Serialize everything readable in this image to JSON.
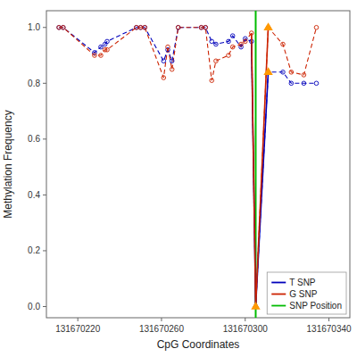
{
  "chart_data": {
    "type": "line",
    "xlabel": "CpG Coordinates",
    "ylabel": "Methylation Frequency",
    "x": [
      131670211,
      131670213,
      131670228,
      131670231,
      131670233,
      131670234,
      131670248,
      131670250,
      131670252,
      131670261,
      131670263,
      131670265,
      131670268,
      131670279,
      131670281,
      131670284,
      131670286,
      131670292,
      131670294,
      131670298,
      131670300,
      131670303,
      131670305,
      131670311,
      131670318,
      131670322,
      131670328,
      131670334
    ],
    "series": [
      {
        "name": "T SNP",
        "color": "#0000bb",
        "line_style": "dashed",
        "marker": "circle",
        "values": [
          1.0,
          1.0,
          0.91,
          0.93,
          0.94,
          0.95,
          1.0,
          1.0,
          1.0,
          0.88,
          0.92,
          0.88,
          1.0,
          1.0,
          1.0,
          0.95,
          0.94,
          0.95,
          0.97,
          0.93,
          0.96,
          0.95,
          0.0,
          0.84,
          0.84,
          0.8,
          0.8,
          0.8
        ]
      },
      {
        "name": "G SNP",
        "color": "#cc2200",
        "line_style": "dashed",
        "marker": "circle",
        "values": [
          1.0,
          1.0,
          0.9,
          0.9,
          0.92,
          0.92,
          1.0,
          1.0,
          1.0,
          0.82,
          0.93,
          0.85,
          1.0,
          1.0,
          1.0,
          0.81,
          0.88,
          0.9,
          0.93,
          0.94,
          0.95,
          0.98,
          0.0,
          1.0,
          0.94,
          0.84,
          0.83,
          1.0
        ]
      },
      {
        "name": "SNP Position",
        "type": "vline",
        "color": "#00bb00",
        "line_style": "solid",
        "x": [
          131670305
        ]
      },
      {
        "type": "scatter",
        "color": "#ff9900",
        "marker": "triangle",
        "x": [
          131670305,
          131670311,
          131670311
        ],
        "values": [
          0.0,
          1.0,
          0.84
        ]
      }
    ],
    "xlim": [
      131670205,
      131670350
    ],
    "ylim": [
      -0.04,
      1.06
    ],
    "xticks": [
      131670220,
      131670260,
      131670300,
      131670340
    ],
    "yticks": [
      {
        "value": 0.0,
        "label": "0.0"
      },
      0.2,
      0.4,
      0.6,
      0.8,
      {
        "value": 1.0,
        "label": "1.0"
      }
    ],
    "grid": false,
    "legend": "lower right"
  }
}
